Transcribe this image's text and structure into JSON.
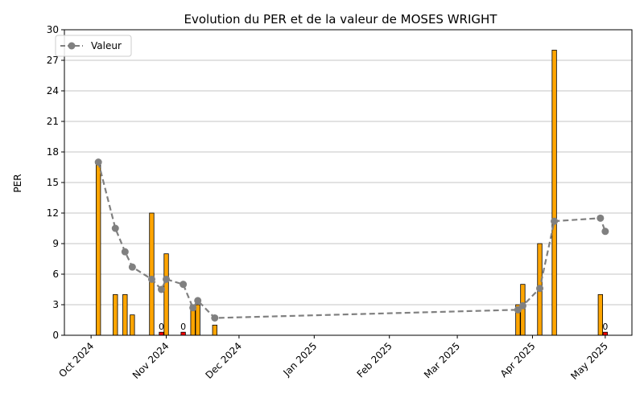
{
  "chart_data": {
    "type": "bar+line",
    "title": "Evolution du PER et de la valeur de MOSES WRIGHT",
    "xlabel": "",
    "ylabel": "PER",
    "ylim": [
      0,
      30
    ],
    "yticks": [
      0,
      3,
      6,
      9,
      12,
      15,
      18,
      21,
      24,
      27,
      30
    ],
    "xlim": [
      "2024-09-20",
      "2025-05-12"
    ],
    "xticks": [
      {
        "date": "2024-10-01",
        "label": "Oct 2024"
      },
      {
        "date": "2024-11-01",
        "label": "Nov 2024"
      },
      {
        "date": "2024-12-01",
        "label": "Dec 2024"
      },
      {
        "date": "2025-01-01",
        "label": "Jan 2025"
      },
      {
        "date": "2025-02-01",
        "label": "Feb 2025"
      },
      {
        "date": "2025-03-01",
        "label": "Mar 2025"
      },
      {
        "date": "2025-04-01",
        "label": "Apr 2025"
      },
      {
        "date": "2025-05-01",
        "label": "May 2025"
      }
    ],
    "grid": "y",
    "legend": {
      "position": "top-left",
      "label": "Valeur"
    },
    "colors": {
      "bar": "#FFA500",
      "bar_zero": "#FF0000",
      "line": "#808080",
      "edge": "#000000"
    },
    "bars": [
      {
        "date": "2024-10-04",
        "value": 17
      },
      {
        "date": "2024-10-11",
        "value": 4
      },
      {
        "date": "2024-10-15",
        "value": 4
      },
      {
        "date": "2024-10-18",
        "value": 2
      },
      {
        "date": "2024-10-26",
        "value": 12
      },
      {
        "date": "2024-10-30",
        "value": 0.3,
        "label": "0"
      },
      {
        "date": "2024-11-01",
        "value": 8
      },
      {
        "date": "2024-11-08",
        "value": 0.3,
        "label": "0"
      },
      {
        "date": "2024-11-12",
        "value": 3
      },
      {
        "date": "2024-11-14",
        "value": 3
      },
      {
        "date": "2024-11-21",
        "value": 1
      },
      {
        "date": "2025-03-26",
        "value": 3
      },
      {
        "date": "2025-03-28",
        "value": 5
      },
      {
        "date": "2025-04-04",
        "value": 9
      },
      {
        "date": "2025-04-10",
        "value": 28
      },
      {
        "date": "2025-04-29",
        "value": 4
      },
      {
        "date": "2025-05-01",
        "value": 0.3,
        "label": "0"
      }
    ],
    "series": [
      {
        "name": "Valeur",
        "style": "dashed-marker",
        "points": [
          {
            "date": "2024-10-04",
            "value": 17.0
          },
          {
            "date": "2024-10-11",
            "value": 10.5
          },
          {
            "date": "2024-10-15",
            "value": 8.2
          },
          {
            "date": "2024-10-18",
            "value": 6.7
          },
          {
            "date": "2024-10-26",
            "value": 5.5
          },
          {
            "date": "2024-10-30",
            "value": 4.5
          },
          {
            "date": "2024-11-01",
            "value": 5.5
          },
          {
            "date": "2024-11-08",
            "value": 5.0
          },
          {
            "date": "2024-11-12",
            "value": 2.7
          },
          {
            "date": "2024-11-14",
            "value": 3.4
          },
          {
            "date": "2024-11-21",
            "value": 1.7
          },
          {
            "date": "2025-03-26",
            "value": 2.5
          },
          {
            "date": "2025-03-28",
            "value": 2.9
          },
          {
            "date": "2025-04-04",
            "value": 4.6
          },
          {
            "date": "2025-04-10",
            "value": 11.2
          },
          {
            "date": "2025-04-29",
            "value": 11.5
          },
          {
            "date": "2025-05-01",
            "value": 10.2
          }
        ]
      }
    ]
  }
}
